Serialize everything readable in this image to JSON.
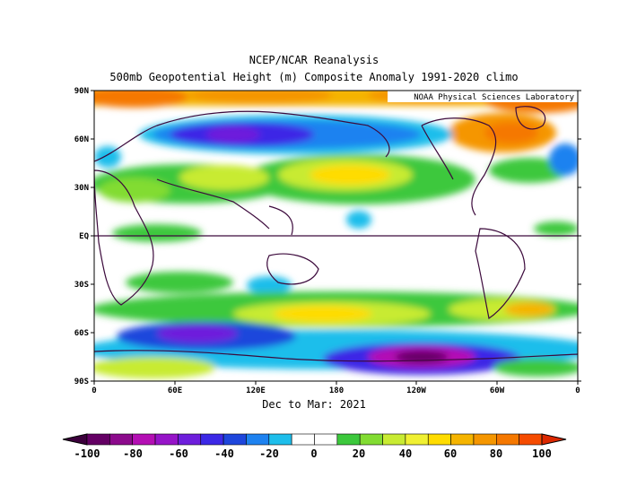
{
  "titles": {
    "line1": "NCEP/NCAR Reanalysis",
    "line2": "500mb Geopotential Height (m) Composite Anomaly 1991-2020 climo",
    "credit": "NOAA Physical Sciences Laboratory",
    "period": "Dec to Mar: 2021"
  },
  "axes": {
    "lat_labels": [
      "90N",
      "60N",
      "30N",
      "EQ",
      "30S",
      "60S",
      "90S"
    ],
    "lon_labels": [
      "0",
      "60E",
      "120E",
      "180",
      "120W",
      "60W",
      "0"
    ]
  },
  "colorbar": {
    "labels": [
      "-100",
      "-80",
      "-60",
      "-40",
      "-20",
      "0",
      "20",
      "40",
      "60",
      "80",
      "100"
    ],
    "colors": [
      "#640064",
      "#8c0a8c",
      "#b40fb4",
      "#9614c8",
      "#6e1edc",
      "#3c28e6",
      "#1e46dc",
      "#1e82f0",
      "#1ebeeb",
      "#ffffff",
      "#ffffff",
      "#3cc83c",
      "#82dc32",
      "#c8eb32",
      "#f0f032",
      "#ffdc00",
      "#f5b400",
      "#f59600",
      "#f57800",
      "#f54b00"
    ],
    "left_end_color": "#3c003c",
    "right_end_color": "#dc2800"
  }
}
